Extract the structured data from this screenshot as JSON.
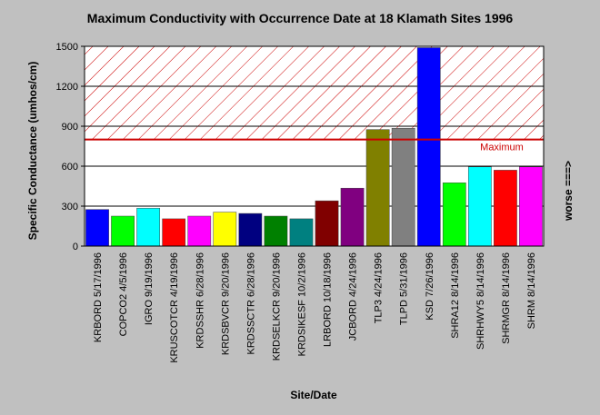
{
  "chart_data": {
    "type": "bar",
    "title": "Maximum Conductivity with Occurrence Date at 18 Klamath Sites 1996",
    "xlabel": "Site/Date",
    "ylabel": "Specific Conductance (umhos/cm)",
    "ylim": [
      0,
      1500
    ],
    "yticks": [
      0,
      300,
      600,
      900,
      1200,
      1500
    ],
    "grid": true,
    "threshold": {
      "label": "Maximum",
      "value": 800,
      "color": "#cc0000"
    },
    "side_label": "worse ===>",
    "categories": [
      "KRBORD 5/17/1996",
      "COPCO2 4/5/1996",
      "IGRO 9/19/1996",
      "KRUSCOTCR 4/19/1996",
      "KRDSSHR 6/28/1996",
      "KRDSBVCR 9/20/1996",
      "KRDSSCTR 6/28/1996",
      "KRDSELKCR 9/20/1996",
      "KRDSIKESF 10/2/1996",
      "LRBORD 10/18/1996",
      "JCBORD 4/24/1996",
      "TLP3 4/24/1996",
      "TLPD 5/31/1996",
      "KSD 7/26/1996",
      "SHRA12 8/14/1996",
      "SHRHWY5 8/14/1996",
      "SHRMGR 8/14/1996",
      "SHRM 8/14/1996"
    ],
    "values": [
      275,
      225,
      285,
      205,
      225,
      255,
      245,
      225,
      205,
      340,
      435,
      875,
      885,
      1490,
      475,
      595,
      570,
      595
    ],
    "colors": [
      "#0000ff",
      "#00ff00",
      "#00ffff",
      "#ff0000",
      "#ff00ff",
      "#ffff00",
      "#000080",
      "#008000",
      "#008080",
      "#800000",
      "#800080",
      "#808000",
      "#808080",
      "#0000ff",
      "#00ff00",
      "#00ffff",
      "#ff0000",
      "#ff00ff"
    ]
  }
}
